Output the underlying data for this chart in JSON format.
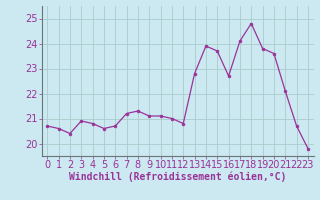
{
  "x": [
    0,
    1,
    2,
    3,
    4,
    5,
    6,
    7,
    8,
    9,
    10,
    11,
    12,
    13,
    14,
    15,
    16,
    17,
    18,
    19,
    20,
    21,
    22,
    23
  ],
  "y": [
    20.7,
    20.6,
    20.4,
    20.9,
    20.8,
    20.6,
    20.7,
    21.2,
    21.3,
    21.1,
    21.1,
    21.0,
    20.8,
    22.8,
    23.9,
    23.7,
    22.7,
    24.1,
    24.8,
    23.8,
    23.6,
    22.1,
    20.7,
    19.8
  ],
  "line_color": "#993399",
  "marker_color": "#993399",
  "bg_color": "#cce8f0",
  "grid_color": "#aacccc",
  "spine_color": "#667777",
  "xlabel": "Windchill (Refroidissement éolien,°C)",
  "ylim": [
    19.5,
    25.5
  ],
  "xlim": [
    -0.5,
    23.5
  ],
  "yticks": [
    20,
    21,
    22,
    23,
    24,
    25
  ],
  "xticks": [
    0,
    1,
    2,
    3,
    4,
    5,
    6,
    7,
    8,
    9,
    10,
    11,
    12,
    13,
    14,
    15,
    16,
    17,
    18,
    19,
    20,
    21,
    22,
    23
  ],
  "xlabel_fontsize": 7.0,
  "tick_fontsize": 7.0,
  "label_color": "#993399"
}
